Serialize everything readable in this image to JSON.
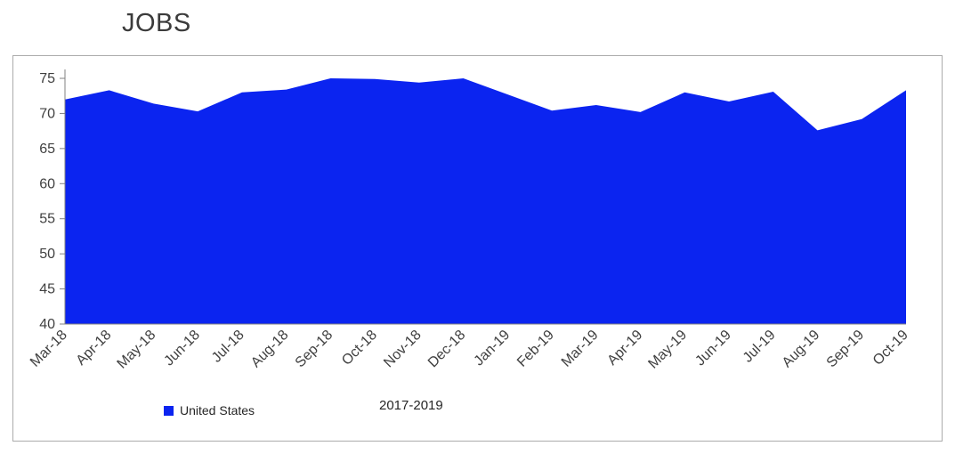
{
  "title": "JOBS",
  "chart_data": {
    "type": "area",
    "x": [
      "Mar-18",
      "Apr-18",
      "May-18",
      "Jun-18",
      "Jul-18",
      "Aug-18",
      "Sep-18",
      "Oct-18",
      "Nov-18",
      "Dec-18",
      "Jan-19",
      "Feb-19",
      "Mar-19",
      "Apr-19",
      "May-19",
      "Jun-19",
      "Jul-19",
      "Aug-19",
      "Sep-19",
      "Oct-19"
    ],
    "series": [
      {
        "name": "United States",
        "values": [
          72.0,
          73.3,
          71.4,
          70.3,
          73.0,
          73.4,
          75.0,
          74.9,
          74.4,
          75.0,
          72.7,
          70.4,
          71.2,
          70.2,
          73.0,
          71.7,
          73.1,
          67.6,
          69.2,
          73.3
        ]
      }
    ],
    "ylim": [
      40,
      75
    ],
    "yticks": [
      40,
      45,
      50,
      55,
      60,
      65,
      70,
      75
    ],
    "xlabel": "2017-2019",
    "grid": false,
    "legend_position": "bottom",
    "colors": {
      "series": "#0b24f0",
      "axis": "#808080",
      "text": "#404040"
    }
  }
}
